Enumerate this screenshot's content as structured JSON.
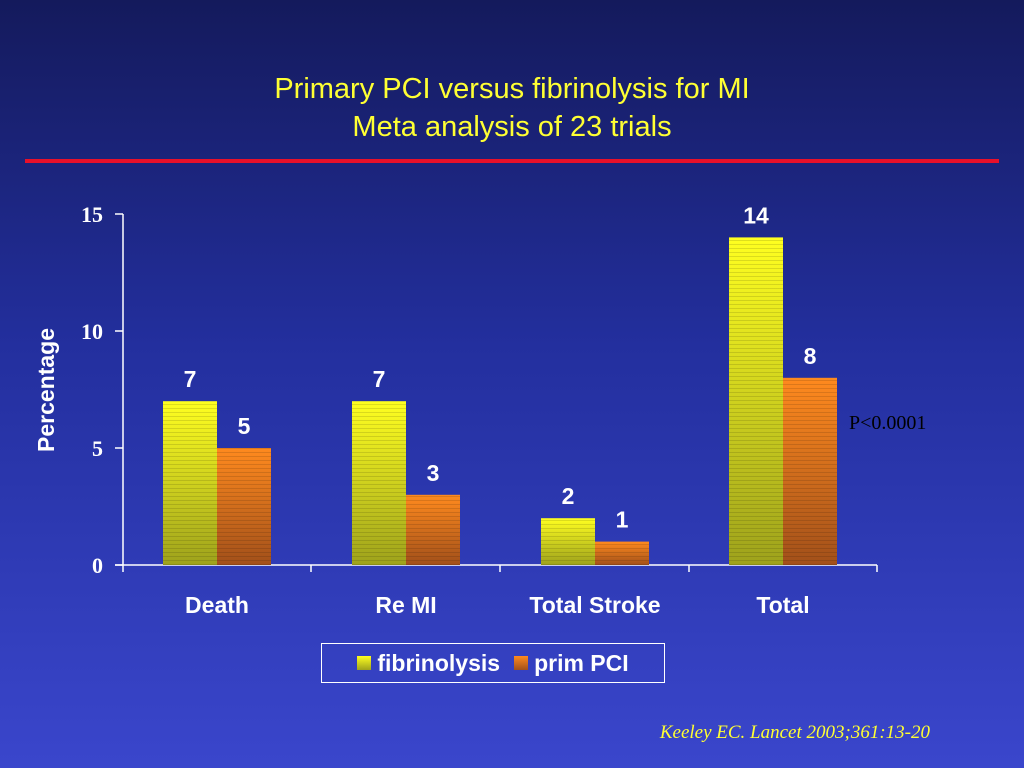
{
  "slide": {
    "title_line1": "Primary PCI versus fibrinolysis for MI",
    "title_line2": "Meta analysis of 23 trials",
    "p_value": "P<0.0001",
    "citation": "Keeley EC. Lancet 2003;361:13-20"
  },
  "colors": {
    "title": "#ffff33",
    "rule": "#e8102a",
    "fibrinolysis": "#ffff20",
    "prim_pci": "#ff8a1e"
  },
  "chart_data": {
    "type": "bar",
    "title": "Primary PCI versus fibrinolysis for MI",
    "subtitle": "Meta analysis of 23 trials",
    "xlabel": "",
    "ylabel": "Percentage",
    "ylim": [
      0,
      15
    ],
    "yticks": [
      "0",
      "5",
      "10",
      "15"
    ],
    "categories": [
      "Death",
      "Re MI",
      "Total Stroke",
      "Total"
    ],
    "series": [
      {
        "name": "fibrinolysis",
        "values": [
          7,
          7,
          2,
          14
        ],
        "labels": [
          "7",
          "7",
          "2",
          "14"
        ]
      },
      {
        "name": "prim PCI",
        "values": [
          5,
          3,
          1,
          8
        ],
        "labels": [
          "5",
          "3",
          "1",
          "8"
        ]
      }
    ],
    "grid": false,
    "legend": "bottom-center"
  }
}
